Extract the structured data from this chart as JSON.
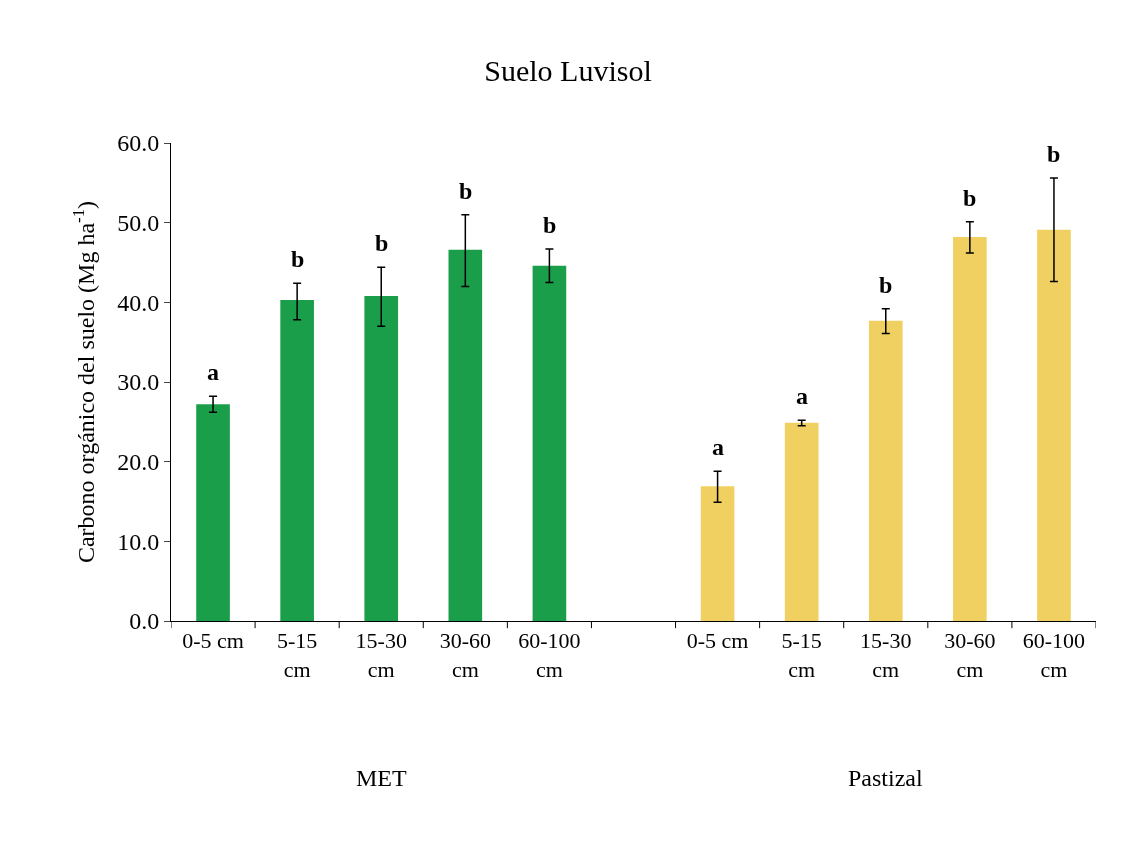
{
  "chart_data": {
    "type": "bar",
    "title": "Suelo Luvisol",
    "ylabel": "Carbono orgánico del suelo (Mg ha$^{-1}$)",
    "categories": [
      "0-5 cm",
      "5-15\ncm",
      "15-30\ncm",
      "30-60\ncm",
      "60-100\ncm",
      null,
      "0-5 cm",
      "5-15\ncm",
      "15-30\ncm",
      "30-60\ncm",
      "60-100\ncm"
    ],
    "series": [
      {
        "color": "#1a9e4a",
        "values": [
          27.2,
          40.3,
          40.8,
          46.6,
          44.6,
          null,
          null,
          null,
          null,
          null,
          null
        ],
        "errors": [
          [
            26.2,
            28.2
          ],
          [
            37.8,
            42.4
          ],
          [
            37.0,
            44.4
          ],
          [
            42.0,
            51.0
          ],
          [
            42.5,
            46.7
          ],
          null,
          null,
          null,
          null,
          null,
          null
        ],
        "value_labels": [
          "a",
          "b",
          "b",
          "b",
          "b",
          null,
          null,
          null,
          null,
          null,
          null
        ]
      },
      {
        "color": "#f0d060",
        "values": [
          null,
          null,
          null,
          null,
          null,
          null,
          16.9,
          24.9,
          37.7,
          48.2,
          49.1
        ],
        "errors": [
          null,
          null,
          null,
          null,
          null,
          null,
          [
            14.9,
            18.8
          ],
          [
            24.5,
            25.2
          ],
          [
            36.1,
            39.2
          ],
          [
            46.2,
            50.1
          ],
          [
            42.6,
            55.6
          ]
        ],
        "value_labels": [
          null,
          null,
          null,
          null,
          null,
          null,
          "a",
          "a",
          "b",
          "b",
          "b"
        ]
      }
    ],
    "annotations": [
      "MET",
      "Pastizal"
    ],
    "ylim": [
      0,
      60
    ],
    "yticks": [
      {
        "value": 0,
        "label": "0.0"
      },
      {
        "value": 10,
        "label": "10.0"
      },
      {
        "value": 20,
        "label": "20.0"
      },
      {
        "value": 30,
        "label": "30.0"
      },
      {
        "value": 40,
        "label": "40.0"
      },
      {
        "value": 50,
        "label": "50.0"
      },
      {
        "value": 60,
        "label": "60.0"
      }
    ]
  }
}
